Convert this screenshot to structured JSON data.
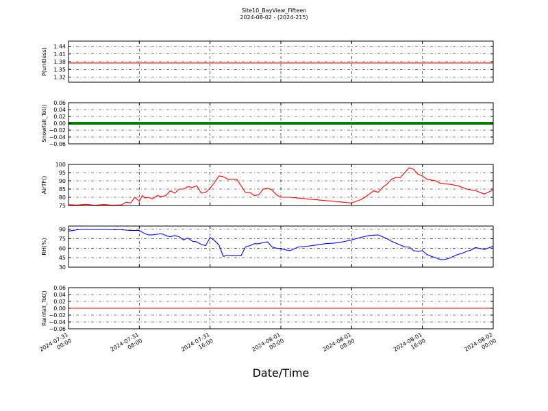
{
  "chart": {
    "title_line1": "Site10_BayView_Fifteen",
    "title_line2": "2024-08-02 - (2024-215)",
    "xlabel": "Date/Time"
  },
  "chart_data": {
    "type": "line",
    "title": "Site10_BayView_Fifteen\n2024-08-02 - (2024-215)",
    "xlabel": "Date/Time",
    "xlim": [
      "2024-07-31 00:00",
      "2024-08-02 00:00"
    ],
    "xticks": [
      "2024-07-31\n00:00",
      "2024-07-31\n08:00",
      "2024-07-31\n16:00",
      "2024-08-01\n00:00",
      "2024-08-01\n08:00",
      "2024-08-01\n16:00",
      "2024-08-02\n00:00"
    ],
    "grid": true,
    "panels": [
      {
        "ylabel": "P(unitless)",
        "ylim": [
          1.3,
          1.46
        ],
        "yticks": [
          "1.32",
          "1.35",
          "1.38",
          "1.41",
          "1.44"
        ],
        "series": [
          {
            "color": "#ff0000",
            "x": [
              "2024-07-31 00:00",
              "2024-08-02 00:00"
            ],
            "y": [
              1.375,
              1.375
            ]
          }
        ]
      },
      {
        "ylabel": "Snowfall_Tot()",
        "ylim": [
          -0.06,
          0.06
        ],
        "yticks": [
          "−0.06",
          "−0.04",
          "−0.02",
          "0.00",
          "0.02",
          "0.04",
          "0.06"
        ],
        "series": [
          {
            "color": "#008000",
            "style": "thick",
            "x": [
              "2024-07-31 00:00",
              "2024-08-02 00:00"
            ],
            "y": [
              0,
              0
            ]
          }
        ]
      },
      {
        "ylabel": "AirTF()",
        "ylim": [
          75,
          100
        ],
        "yticks": [
          "75",
          "80",
          "85",
          "90",
          "95",
          "100"
        ],
        "series": [
          {
            "color": "#ff0000",
            "x": [
              "2024-07-31 00:00",
              "2024-07-31 01:00",
              "2024-07-31 02:00",
              "2024-07-31 03:00",
              "2024-07-31 04:00",
              "2024-07-31 05:00",
              "2024-07-31 06:00",
              "2024-07-31 06:30",
              "2024-07-31 07:00",
              "2024-07-31 07:30",
              "2024-07-31 08:00",
              "2024-07-31 08:20",
              "2024-07-31 08:40",
              "2024-07-31 09:00",
              "2024-07-31 09:30",
              "2024-07-31 10:00",
              "2024-07-31 10:30",
              "2024-07-31 11:00",
              "2024-07-31 11:30",
              "2024-07-31 12:00",
              "2024-07-31 12:30",
              "2024-07-31 13:00",
              "2024-07-31 13:30",
              "2024-07-31 14:00",
              "2024-07-31 14:30",
              "2024-07-31 15:00",
              "2024-07-31 15:30",
              "2024-07-31 16:00",
              "2024-07-31 16:30",
              "2024-07-31 17:00",
              "2024-07-31 17:30",
              "2024-07-31 18:00",
              "2024-07-31 18:30",
              "2024-07-31 19:00",
              "2024-07-31 19:30",
              "2024-07-31 20:00",
              "2024-07-31 20:30",
              "2024-07-31 21:00",
              "2024-07-31 21:30",
              "2024-07-31 22:00",
              "2024-07-31 22:30",
              "2024-07-31 23:00",
              "2024-07-31 23:30",
              "2024-08-01 00:00",
              "2024-08-01 01:00",
              "2024-08-01 02:00",
              "2024-08-01 03:00",
              "2024-08-01 04:00",
              "2024-08-01 05:00",
              "2024-08-01 06:00",
              "2024-08-01 07:00",
              "2024-08-01 08:00",
              "2024-08-01 08:30",
              "2024-08-01 09:00",
              "2024-08-01 09:30",
              "2024-08-01 10:00",
              "2024-08-01 10:30",
              "2024-08-01 11:00",
              "2024-08-01 11:30",
              "2024-08-01 12:00",
              "2024-08-01 12:30",
              "2024-08-01 13:00",
              "2024-08-01 13:30",
              "2024-08-01 14:00",
              "2024-08-01 14:30",
              "2024-08-01 15:00",
              "2024-08-01 15:30",
              "2024-08-01 16:00",
              "2024-08-01 16:30",
              "2024-08-01 17:00",
              "2024-08-01 17:30",
              "2024-08-01 18:00",
              "2024-08-01 19:00",
              "2024-08-01 20:00",
              "2024-08-01 21:00",
              "2024-08-01 22:00",
              "2024-08-01 23:00",
              "2024-08-02 00:00"
            ],
            "y": [
              75.5,
              75.3,
              75.7,
              75.2,
              75.6,
              75.2,
              75.4,
              77,
              76.5,
              80,
              77.5,
              81,
              79.5,
              80,
              79,
              81,
              80.5,
              81,
              84,
              82.5,
              85,
              85,
              86.5,
              86,
              87,
              82.5,
              83,
              85.5,
              89,
              93,
              92.5,
              91,
              91,
              91,
              87,
              83,
              83,
              81,
              81.5,
              85,
              85.5,
              84.5,
              81.5,
              80,
              80,
              79.5,
              79,
              78.5,
              78,
              77.5,
              77,
              76.5,
              77.5,
              78.5,
              80,
              82,
              84,
              83,
              86,
              88,
              91,
              92,
              92,
              95,
              98,
              97,
              94,
              93,
              91,
              90.5,
              90,
              88.5,
              88,
              87,
              85,
              84,
              82,
              84.5
            ]
          }
        ]
      },
      {
        "ylabel": "RH(%)",
        "ylim": [
          30,
          95
        ],
        "yticks": [
          "30",
          "45",
          "60",
          "75",
          "90"
        ],
        "series": [
          {
            "color": "#0000ff",
            "x": [
              "2024-07-31 00:00",
              "2024-07-31 01:00",
              "2024-07-31 02:00",
              "2024-07-31 03:00",
              "2024-07-31 04:00",
              "2024-07-31 05:00",
              "2024-07-31 06:00",
              "2024-07-31 07:00",
              "2024-07-31 08:00",
              "2024-07-31 08:30",
              "2024-07-31 09:00",
              "2024-07-31 09:30",
              "2024-07-31 10:00",
              "2024-07-31 10:30",
              "2024-07-31 11:00",
              "2024-07-31 11:30",
              "2024-07-31 12:00",
              "2024-07-31 12:30",
              "2024-07-31 13:00",
              "2024-07-31 13:30",
              "2024-07-31 14:00",
              "2024-07-31 14:30",
              "2024-07-31 15:00",
              "2024-07-31 15:30",
              "2024-07-31 16:00",
              "2024-07-31 16:30",
              "2024-07-31 17:00",
              "2024-07-31 17:30",
              "2024-07-31 18:00",
              "2024-07-31 18:30",
              "2024-07-31 19:00",
              "2024-07-31 19:30",
              "2024-07-31 20:00",
              "2024-07-31 20:30",
              "2024-07-31 21:00",
              "2024-07-31 21:30",
              "2024-07-31 22:00",
              "2024-07-31 22:30",
              "2024-07-31 23:00",
              "2024-07-31 23:30",
              "2024-08-01 00:00",
              "2024-08-01 01:00",
              "2024-08-01 02:00",
              "2024-08-01 03:00",
              "2024-08-01 04:00",
              "2024-08-01 05:00",
              "2024-08-01 06:00",
              "2024-08-01 07:00",
              "2024-08-01 08:00",
              "2024-08-01 09:00",
              "2024-08-01 10:00",
              "2024-08-01 11:00",
              "2024-08-01 12:00",
              "2024-08-01 12:30",
              "2024-08-01 13:00",
              "2024-08-01 13:30",
              "2024-08-01 14:00",
              "2024-08-01 14:30",
              "2024-08-01 15:00",
              "2024-08-01 15:30",
              "2024-08-01 16:00",
              "2024-08-01 16:30",
              "2024-08-01 17:00",
              "2024-08-01 17:30",
              "2024-08-01 18:00",
              "2024-08-01 18:30",
              "2024-08-01 19:00",
              "2024-08-01 19:30",
              "2024-08-01 20:00",
              "2024-08-01 20:30",
              "2024-08-01 21:00",
              "2024-08-01 21:30",
              "2024-08-01 22:00",
              "2024-08-01 23:00",
              "2024-08-02 00:00"
            ],
            "y": [
              87,
              89,
              90,
              90,
              90,
              89,
              89,
              88,
              88,
              84,
              81,
              81,
              82,
              83,
              80,
              78,
              80,
              78,
              73,
              76,
              71,
              70,
              66,
              64,
              77,
              72,
              65,
              47,
              49,
              48,
              48,
              48,
              62,
              64,
              67,
              67,
              69,
              70,
              62,
              60,
              59,
              56,
              62,
              63,
              65,
              67,
              68,
              70,
              73,
              77,
              80,
              81,
              75,
              71,
              68,
              65,
              62,
              62,
              56,
              55,
              56,
              50,
              47,
              45,
              42,
              42,
              44,
              47,
              50,
              52,
              55,
              57,
              61,
              58,
              63
            ]
          }
        ]
      },
      {
        "ylabel": "Rainfall_Tot()",
        "ylim": [
          -0.06,
          0.06
        ],
        "yticks": [
          "−0.06",
          "−0.04",
          "−0.02",
          "0.00",
          "0.02",
          "0.04",
          "0.06"
        ],
        "series": [
          {
            "color": "#ff0000",
            "x": [
              "2024-07-31 00:00",
              "2024-08-02 00:00"
            ],
            "y": [
              0,
              0
            ]
          }
        ]
      }
    ]
  }
}
